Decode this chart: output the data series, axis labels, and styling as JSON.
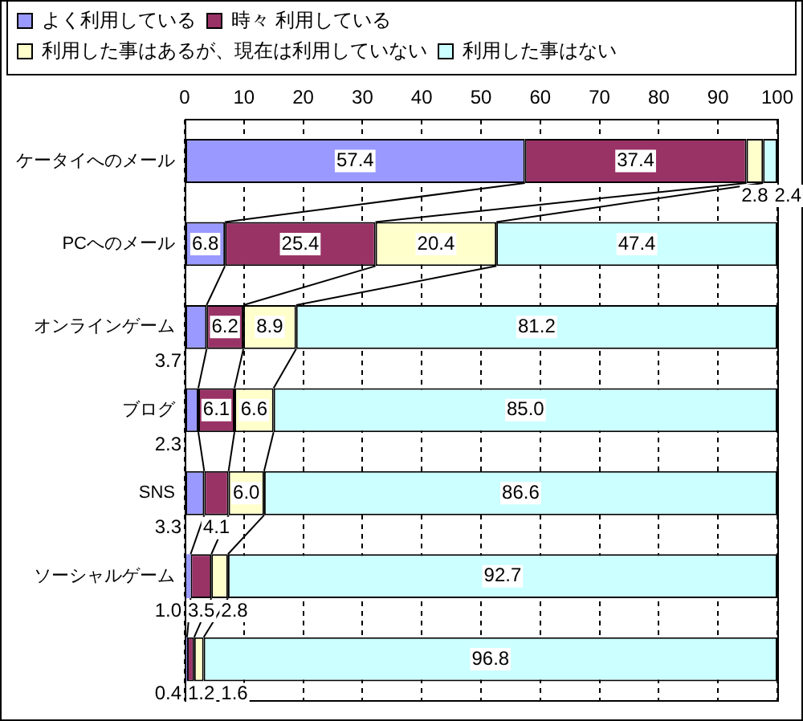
{
  "chart_data": {
    "type": "bar",
    "orientation": "horizontal",
    "stacked": true,
    "categories": [
      "ケータイへのメール",
      "PCへのメール",
      "オンラインゲーム",
      "ブログ",
      "SNS",
      "ソーシャルゲーム",
      null
    ],
    "series": [
      {
        "name": "よく利用している",
        "color": "#9999ff",
        "values": [
          57.4,
          6.8,
          3.7,
          2.3,
          3.3,
          1.0,
          0.4
        ],
        "value_labels": [
          "57.4",
          "6.8",
          "3.7",
          "2.3",
          "3.3",
          "1.0",
          "0.4"
        ]
      },
      {
        "name": "時々 利用している",
        "color": "#993366",
        "values": [
          37.4,
          25.4,
          6.2,
          6.1,
          4.1,
          3.5,
          1.2
        ],
        "value_labels": [
          "37.4",
          "25.4",
          "6.2",
          "6.1",
          "4.1",
          "3.5",
          "1.2"
        ]
      },
      {
        "name": "利用した事はあるが、現在は利用していない",
        "color": "#ffffcc",
        "values": [
          2.8,
          20.4,
          8.9,
          6.6,
          6.0,
          2.8,
          1.6
        ],
        "value_labels": [
          "2.8",
          "20.4",
          "8.9",
          "6.6",
          "6.0",
          "2.8",
          "1.6"
        ]
      },
      {
        "name": "利用した事はない",
        "color": "#ccffff",
        "values": [
          2.4,
          47.4,
          81.2,
          85.0,
          86.6,
          92.7,
          96.8
        ],
        "value_labels": [
          "2.4",
          "47.4",
          "81.2",
          "85.0",
          "86.6",
          "92.7",
          "96.8"
        ]
      }
    ],
    "xlim": [
      0,
      100
    ],
    "xticks": [
      0,
      10,
      20,
      30,
      40,
      50,
      60,
      70,
      80,
      90,
      100
    ],
    "grid": "x",
    "legend": "top"
  }
}
